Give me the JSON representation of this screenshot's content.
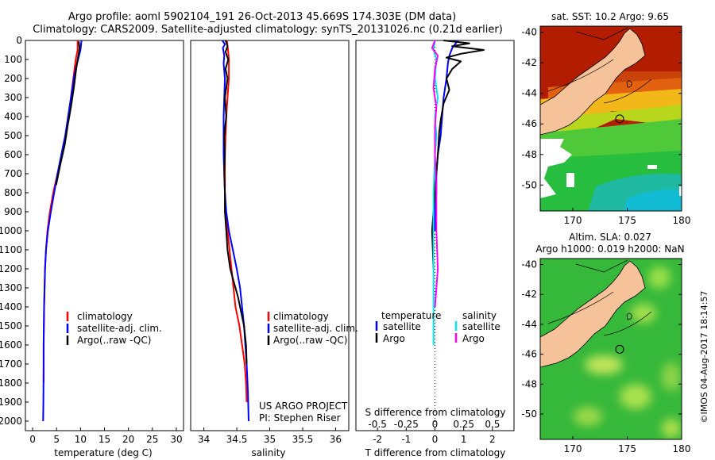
{
  "header": {
    "line1": "Argo profile: aoml 5902104_191 26-Oct-2013 45.669S 174.303E (DM data)",
    "line2": "Climatology: CARS2009. Satellite-adjusted climatology: synTS_20131026.nc (0.21d earlier)"
  },
  "colors": {
    "climatology": "#ff0000",
    "satellite": "#0000ff",
    "argo": "#000000",
    "diff_sal_sat": "#00e5ee",
    "diff_sal_argo": "#ff00ff"
  },
  "depth_axis": {
    "ylim": [
      0,
      2050
    ],
    "ticks": [
      "0",
      "100",
      "200",
      "300",
      "400",
      "500",
      "600",
      "700",
      "800",
      "900",
      "1000",
      "1100",
      "1200",
      "1300",
      "1400",
      "1500",
      "1600",
      "1700",
      "1800",
      "1900",
      "2000"
    ]
  },
  "chart_data": [
    {
      "id": "temperature",
      "type": "line",
      "xlabel": "temperature (deg C)",
      "xlim": [
        -1.5,
        31.5
      ],
      "xticks": [
        "0",
        "5",
        "10",
        "15",
        "20",
        "25",
        "30"
      ],
      "legend": [
        "climatology",
        "satellite-adj. clim.",
        "Argo(..raw -QC)"
      ],
      "series": [
        {
          "name": "climatology",
          "color_key": "climatology",
          "x": [
            9.4,
            9.4,
            9.0,
            8.5,
            8.0,
            7.5,
            7.0,
            6.2,
            5.2,
            4.3,
            3.6,
            3.1,
            2.8,
            2.6,
            2.5,
            2.4,
            2.35,
            2.3,
            2.3,
            2.3
          ],
          "y": [
            0,
            50,
            100,
            200,
            300,
            400,
            500,
            600,
            700,
            800,
            900,
            1000,
            1100,
            1200,
            1300,
            1400,
            1500,
            1600,
            1700,
            1800
          ]
        },
        {
          "name": "satellite-adj. clim.",
          "color_key": "satellite",
          "x": [
            10.2,
            10.0,
            9.5,
            9.0,
            8.6,
            8.0,
            7.4,
            6.8,
            6.0,
            5.2,
            4.5,
            3.8,
            3.2,
            2.8,
            2.6,
            2.5,
            2.4,
            2.35,
            2.3,
            2.3,
            2.25,
            2.2
          ],
          "y": [
            0,
            50,
            100,
            150,
            200,
            300,
            400,
            500,
            600,
            700,
            800,
            900,
            1000,
            1100,
            1200,
            1300,
            1400,
            1500,
            1600,
            1700,
            1900,
            2000
          ]
        },
        {
          "name": "Argo(..raw -QC)",
          "color_key": "argo",
          "x": [
            9.65,
            9.8,
            9.7,
            9.4,
            9.1,
            8.6,
            8.0,
            7.3,
            6.7,
            5.8,
            4.9
          ],
          "y": [
            5,
            40,
            60,
            100,
            150,
            250,
            350,
            450,
            550,
            650,
            760
          ]
        }
      ]
    },
    {
      "id": "salinity",
      "type": "line",
      "xlabel": "salinity",
      "xlim": [
        33.8,
        36.2
      ],
      "xticks": [
        "34",
        "34.5",
        "35",
        "35.5",
        "36"
      ],
      "legend": [
        "climatology",
        "satellite-adj. clim.",
        "Argo(..raw -QC)"
      ],
      "annotation": [
        "US ARGO PROJECT",
        "PI: Stephen Riser"
      ],
      "series": [
        {
          "name": "climatology",
          "color_key": "climatology",
          "x": [
            34.35,
            34.37,
            34.38,
            34.38,
            34.36,
            34.34,
            34.33,
            34.32,
            34.32,
            34.32,
            34.33,
            34.36,
            34.42,
            34.48,
            34.54,
            34.58,
            34.62,
            34.64,
            34.65
          ],
          "y": [
            0,
            60,
            100,
            200,
            300,
            400,
            500,
            600,
            700,
            800,
            900,
            1000,
            1200,
            1400,
            1500,
            1600,
            1700,
            1800,
            1900
          ]
        },
        {
          "name": "satellite-adj. clim.",
          "color_key": "satellite",
          "x": [
            34.28,
            34.32,
            34.29,
            34.31,
            34.3,
            34.32,
            34.31,
            34.3,
            34.3,
            34.3,
            34.31,
            34.32,
            34.34,
            34.38,
            34.44,
            34.5,
            34.55,
            34.58,
            34.61,
            34.63,
            34.65,
            34.67,
            34.68
          ],
          "y": [
            0,
            20,
            40,
            80,
            120,
            200,
            300,
            400,
            500,
            600,
            700,
            800,
            900,
            1000,
            1100,
            1200,
            1300,
            1400,
            1500,
            1600,
            1700,
            1850,
            2000
          ]
        },
        {
          "name": "Argo(..raw -QC)",
          "color_key": "argo",
          "x": [
            34.33,
            34.36,
            34.33,
            34.37,
            34.33,
            34.36,
            34.32,
            34.34,
            34.31,
            34.32,
            34.31,
            34.32,
            34.32,
            34.34,
            34.36,
            34.4,
            34.44,
            34.48,
            34.52,
            34.55,
            34.58,
            34.61,
            34.64,
            34.65
          ],
          "y": [
            0,
            30,
            60,
            100,
            150,
            200,
            300,
            400,
            500,
            600,
            700,
            800,
            900,
            1000,
            1100,
            1200,
            1250,
            1300,
            1350,
            1400,
            1450,
            1500,
            1600,
            1700
          ]
        }
      ]
    },
    {
      "id": "differences",
      "type": "line",
      "xlabel": "T difference from climatology",
      "xlabel2": "S difference from climatology",
      "xlim": [
        -2.75,
        2.75
      ],
      "xticks": [
        "-2",
        "-1",
        "0",
        "1",
        "2"
      ],
      "top_ticks": [
        "-0.5",
        "-0.25",
        "0",
        "0.25",
        "0.5"
      ],
      "legend_left": {
        "title": "temperature",
        "items": [
          "satellite",
          "Argo"
        ]
      },
      "legend_right": {
        "title": "salinity",
        "items": [
          "satellite",
          "Argo"
        ]
      },
      "series": [
        {
          "name": "temperature satellite",
          "color_key": "satellite",
          "x": [
            0.8,
            0.6,
            0.5,
            0.45,
            0.4,
            0.3,
            0.25,
            0.2,
            0.1,
            0.05,
            0.05,
            0.0,
            0.0
          ],
          "y": [
            0,
            40,
            80,
            120,
            200,
            300,
            400,
            500,
            600,
            700,
            800,
            900,
            1000
          ]
        },
        {
          "name": "temperature Argo",
          "color_key": "argo",
          "x": [
            0.3,
            1.2,
            0.6,
            1.7,
            0.9,
            0.4,
            0.9,
            0.6,
            0.4,
            0.5,
            0.3,
            0.2,
            0.15,
            0.1,
            0.05,
            0.0,
            0.0,
            -0.1,
            -0.05
          ],
          "y": [
            0,
            15,
            30,
            50,
            70,
            90,
            110,
            150,
            200,
            260,
            330,
            420,
            480,
            600,
            700,
            760,
            800,
            1000,
            1200
          ]
        },
        {
          "name": "salinity satellite",
          "color_key": "diff_sal_sat",
          "x": [
            0.0,
            -0.05,
            0.05,
            0.0,
            0.1,
            0.0,
            0.05,
            0.0,
            -0.05,
            -0.05,
            -0.05,
            -0.05,
            -0.05
          ],
          "y": [
            0,
            50,
            100,
            200,
            300,
            400,
            500,
            600,
            800,
            1000,
            1200,
            1400,
            1600
          ]
        },
        {
          "name": "salinity Argo",
          "color_key": "diff_sal_argo",
          "x": [
            0.0,
            -0.1,
            0.1,
            0.0,
            -0.05,
            0.05,
            0.0,
            0.0,
            0.05,
            0.05,
            0.1,
            0.0
          ],
          "y": [
            0,
            40,
            80,
            150,
            250,
            350,
            450,
            600,
            800,
            1000,
            1200,
            1400
          ]
        }
      ]
    },
    {
      "id": "sst-map",
      "type": "heatmap",
      "title": "sat. SST: 10.2 Argo: 9.65",
      "xlim": [
        167,
        180
      ],
      "ylim": [
        -51.7,
        -39.6
      ],
      "xticks": [
        "170",
        "175",
        "180"
      ],
      "yticks": [
        "-40",
        "-42",
        "-44",
        "-46",
        "-48",
        "-50"
      ],
      "marker": {
        "lon": 174.303,
        "lat": -45.669
      }
    },
    {
      "id": "sla-map",
      "type": "heatmap",
      "title": "Altim. SLA: 0.027",
      "subtitle": "Argo h1000: 0.019 h2000: NaN",
      "xlim": [
        167,
        180
      ],
      "ylim": [
        -51.7,
        -39.6
      ],
      "xticks": [
        "170",
        "175",
        "180"
      ],
      "yticks": [
        "-40",
        "-42",
        "-44",
        "-46",
        "-48",
        "-50"
      ],
      "marker": {
        "lon": 174.303,
        "lat": -45.669
      }
    }
  ],
  "footer": {
    "credit": "©IMOS 04-Aug-2017 18:14:57"
  }
}
